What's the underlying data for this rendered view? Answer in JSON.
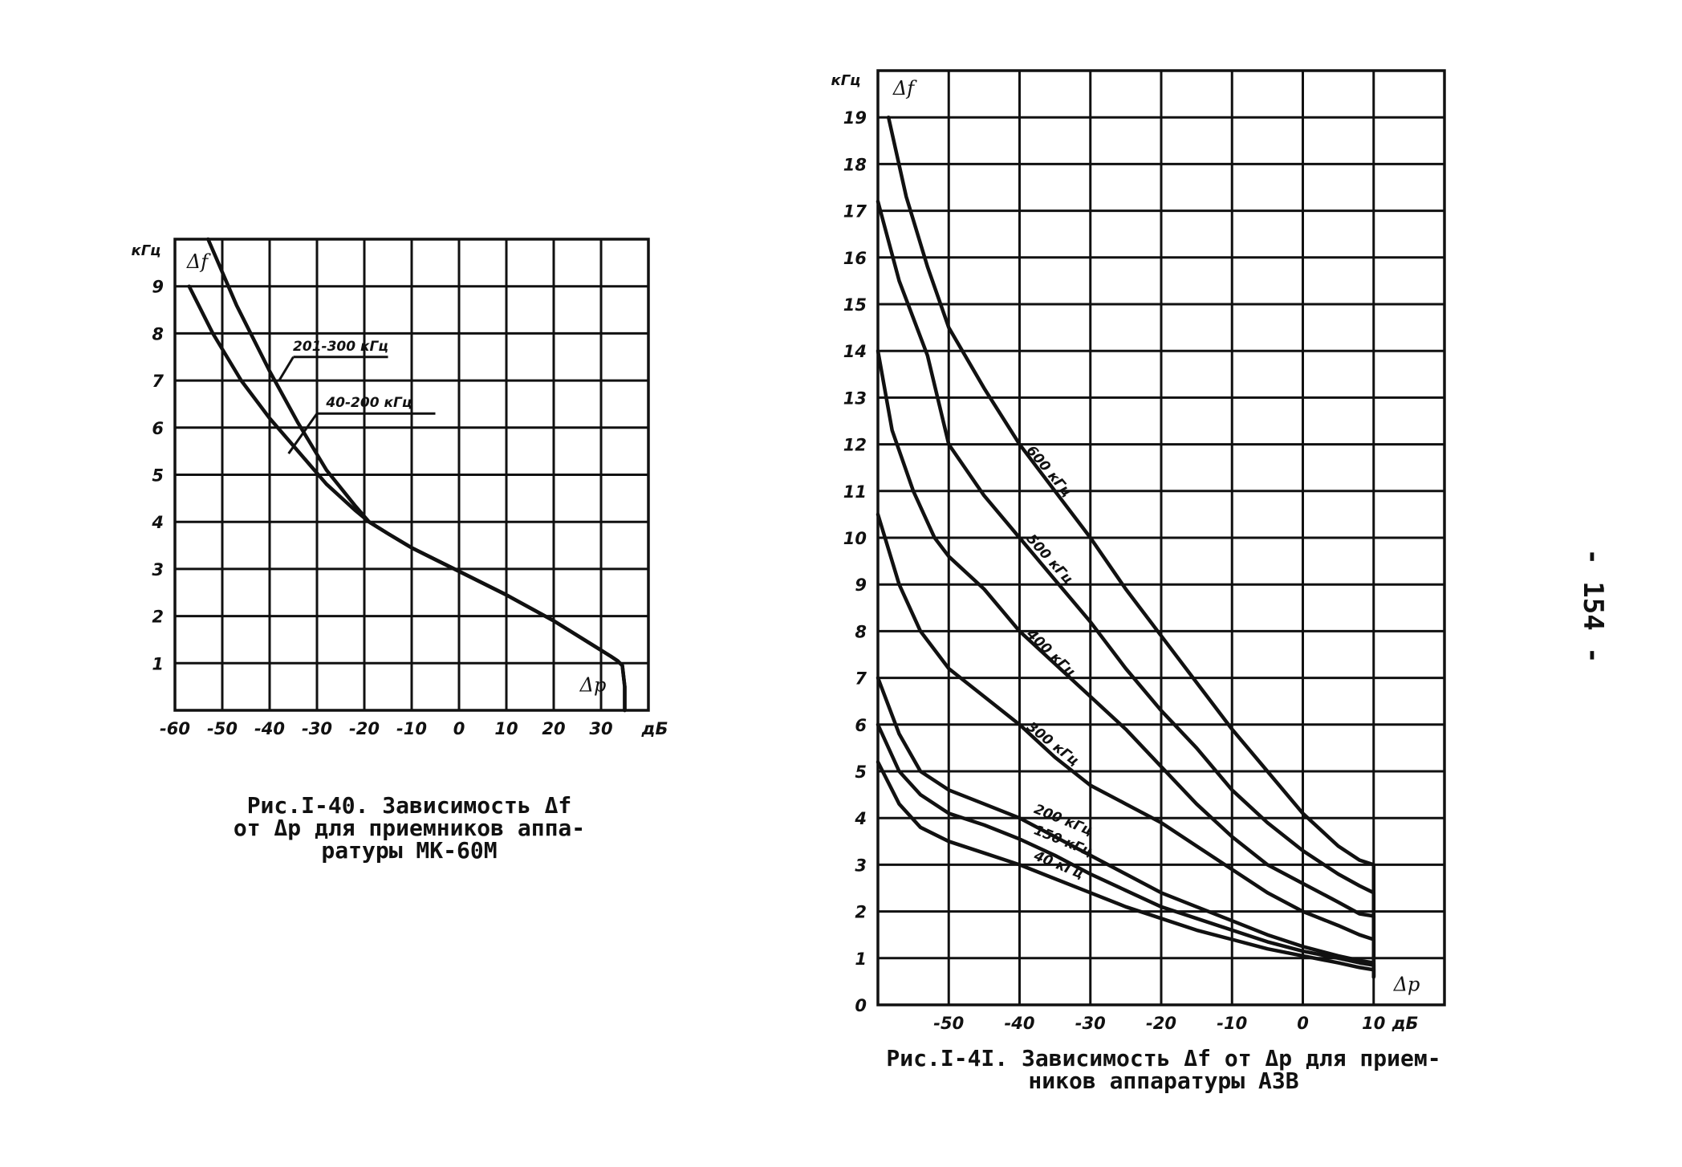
{
  "page_number": "- 154 -",
  "chart_data": [
    {
      "type": "line",
      "figure": "Рис.I-40",
      "caption_line1": "Рис.I-40. Зависимость Δf",
      "caption_line2": "от Δp для приемников аппа-",
      "caption_line3": "ратуры МК-60М",
      "ylabel": "Δf",
      "yunit": "кГц",
      "xlabel": "Δp",
      "xunit": "дБ",
      "xlim": [
        -60,
        40
      ],
      "ylim": [
        0,
        10
      ],
      "xticks": [
        -60,
        -50,
        -40,
        -30,
        -20,
        -10,
        0,
        10,
        20,
        30
      ],
      "xtick_labels": [
        "-60",
        "-50",
        "-40",
        "-30",
        "-20",
        "-10",
        "0",
        "10",
        "20",
        "30"
      ],
      "yticks": [
        1,
        2,
        3,
        4,
        5,
        6,
        7,
        8,
        9
      ],
      "ytick_labels": [
        "1",
        "2",
        "3",
        "4",
        "5",
        "6",
        "7",
        "8",
        "9"
      ],
      "series": [
        {
          "name": "201-300 кГц",
          "x": [
            -53,
            -47,
            -40,
            -34,
            -28,
            -22,
            -19,
            -15,
            -10,
            -5,
            0,
            10,
            20,
            28,
            32,
            33.5,
            34.5,
            35,
            35
          ],
          "y": [
            10.0,
            8.6,
            7.2,
            6.1,
            5.1,
            4.35,
            4.0,
            3.75,
            3.45,
            3.2,
            2.95,
            2.45,
            1.9,
            1.4,
            1.15,
            1.05,
            0.95,
            0.5,
            0
          ]
        },
        {
          "name": "40-200 кГц",
          "x": [
            -57,
            -52,
            -46,
            -40,
            -34,
            -28,
            -22,
            -19,
            -15,
            -10,
            -5,
            0,
            10,
            20,
            28,
            32,
            33.5,
            34.5,
            35,
            35
          ],
          "y": [
            9.0,
            8.0,
            7.0,
            6.2,
            5.5,
            4.8,
            4.25,
            4.0,
            3.75,
            3.45,
            3.2,
            2.95,
            2.45,
            1.9,
            1.4,
            1.15,
            1.05,
            0.95,
            0.5,
            0
          ]
        }
      ],
      "curve_labels": [
        {
          "series": "201-300 кГц",
          "text": "201-300 кГц"
        },
        {
          "series": "40-200 кГц",
          "text": "40-200 кГц"
        }
      ]
    },
    {
      "type": "line",
      "figure": "Рис.I-41",
      "caption_line1": "Рис.I-4I. Зависимость Δf от Δp для прием-",
      "caption_line2": "ников аппаратуры АЗВ",
      "ylabel": "Δf",
      "yunit": "кГц",
      "xlabel": "Δp",
      "xunit": "дБ",
      "xlim": [
        -60,
        20
      ],
      "ylim": [
        0,
        20
      ],
      "xticks": [
        -50,
        -40,
        -30,
        -20,
        -10,
        0,
        10
      ],
      "xtick_labels": [
        "-50",
        "-40",
        "-30",
        "-20",
        "-10",
        "0",
        "10"
      ],
      "yticks": [
        0,
        1,
        2,
        3,
        4,
        5,
        6,
        7,
        8,
        9,
        10,
        11,
        12,
        13,
        14,
        15,
        16,
        17,
        18,
        19
      ],
      "ytick_labels": [
        "0",
        "1",
        "2",
        "3",
        "4",
        "5",
        "6",
        "7",
        "8",
        "9",
        "10",
        "11",
        "12",
        "13",
        "14",
        "15",
        "16",
        "17",
        "18",
        "19"
      ],
      "series": [
        {
          "name": "600 кГц",
          "x": [
            -58.5,
            -56,
            -53,
            -50,
            -45,
            -40,
            -35,
            -30,
            -25,
            -20,
            -15,
            -10,
            -5,
            0,
            5,
            8,
            10,
            10
          ],
          "y": [
            19.0,
            17.3,
            15.8,
            14.5,
            13.2,
            12.0,
            11.0,
            10.0,
            8.9,
            7.9,
            6.9,
            5.9,
            5.0,
            4.1,
            3.4,
            3.1,
            3.0,
            0.6
          ]
        },
        {
          "name": "500 кГц",
          "x": [
            -60,
            -57,
            -53,
            -50,
            -45,
            -40,
            -35,
            -30,
            -25,
            -20,
            -15,
            -10,
            -5,
            0,
            5,
            8,
            10,
            10
          ],
          "y": [
            17.2,
            15.5,
            13.9,
            12.0,
            10.9,
            10.0,
            9.1,
            8.2,
            7.2,
            6.3,
            5.5,
            4.6,
            3.9,
            3.3,
            2.8,
            2.55,
            2.4,
            0.6
          ]
        },
        {
          "name": "400 кГц",
          "x": [
            -60,
            -58,
            -55,
            -52,
            -50,
            -45,
            -40,
            -35,
            -30,
            -25,
            -20,
            -15,
            -10,
            -5,
            0,
            5,
            8,
            10,
            10
          ],
          "y": [
            14.0,
            12.3,
            11.0,
            10.0,
            9.6,
            8.9,
            8.0,
            7.3,
            6.6,
            5.9,
            5.1,
            4.3,
            3.6,
            3.0,
            2.6,
            2.2,
            1.95,
            1.9,
            0.6
          ]
        },
        {
          "name": "300 кГц",
          "x": [
            -60,
            -57,
            -54,
            -50,
            -45,
            -40,
            -35,
            -30,
            -25,
            -20,
            -15,
            -10,
            -5,
            0,
            5,
            8,
            10,
            10
          ],
          "y": [
            10.5,
            9.0,
            8.0,
            7.2,
            6.6,
            6.0,
            5.3,
            4.7,
            4.3,
            3.9,
            3.4,
            2.9,
            2.4,
            2.0,
            1.7,
            1.5,
            1.4,
            0.6
          ]
        },
        {
          "name": "200 кГц",
          "x": [
            -60,
            -57,
            -54,
            -50,
            -45,
            -40,
            -35,
            -30,
            -25,
            -20,
            -15,
            -10,
            -5,
            0,
            5,
            8,
            10,
            10
          ],
          "y": [
            7.0,
            5.8,
            5.0,
            4.6,
            4.3,
            4.0,
            3.6,
            3.2,
            2.8,
            2.4,
            2.1,
            1.8,
            1.5,
            1.25,
            1.05,
            0.95,
            0.9,
            0.6
          ]
        },
        {
          "name": "150 кГц",
          "x": [
            -60,
            -57,
            -54,
            -50,
            -45,
            -40,
            -35,
            -30,
            -25,
            -20,
            -15,
            -10,
            -5,
            0,
            5,
            8,
            10,
            10
          ],
          "y": [
            6.0,
            5.0,
            4.5,
            4.1,
            3.85,
            3.55,
            3.2,
            2.8,
            2.45,
            2.1,
            1.85,
            1.6,
            1.35,
            1.15,
            1.0,
            0.9,
            0.85,
            0.6
          ]
        },
        {
          "name": "40 кГц",
          "x": [
            -60,
            -57,
            -54,
            -50,
            -45,
            -40,
            -35,
            -30,
            -25,
            -20,
            -15,
            -10,
            -5,
            0,
            5,
            8,
            10,
            10
          ],
          "y": [
            5.2,
            4.3,
            3.8,
            3.5,
            3.25,
            3.0,
            2.7,
            2.4,
            2.1,
            1.85,
            1.6,
            1.4,
            1.2,
            1.05,
            0.9,
            0.8,
            0.75,
            0.6
          ]
        }
      ],
      "curve_labels": [
        {
          "series": "600 кГц",
          "text": "600 кГц"
        },
        {
          "series": "500 кГц",
          "text": "500 кГц"
        },
        {
          "series": "400 кГц",
          "text": "400 кГц"
        },
        {
          "series": "300 кГц",
          "text": "300 кГц"
        },
        {
          "series": "200 кГц",
          "text": "200 кГц"
        },
        {
          "series": "150 кГц",
          "text": "150 кГц"
        },
        {
          "series": "40 кГц",
          "text": "40 кГц"
        }
      ]
    }
  ]
}
